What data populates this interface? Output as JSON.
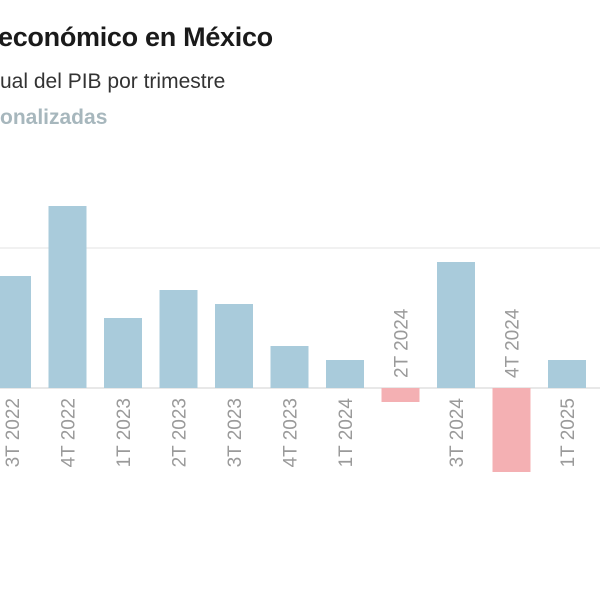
{
  "title": "económico en México",
  "subtitle": "ual del PIB por trimestre",
  "legend_label": "onalizadas",
  "colors": {
    "positive": "#a9cbdb",
    "negative": "#f4b0b3",
    "legend": "#a7b7bd",
    "grid": "#e3e3e3",
    "axis": "#d0d0d0",
    "tick": "#9a9a9a"
  },
  "chart_data": {
    "type": "bar",
    "title": "económico en México",
    "subtitle": "ual del PIB por trimestre",
    "categories": [
      "3T 2022",
      "4T 2022",
      "1T 2023",
      "2T 2023",
      "3T 2023",
      "4T 2023",
      "1T 2024",
      "2T 2024",
      "3T 2024",
      "4T 2024",
      "1T 2025"
    ],
    "values": [
      0.8,
      1.3,
      0.5,
      0.7,
      0.6,
      0.3,
      0.2,
      -0.1,
      0.9,
      -0.6,
      0.2
    ],
    "ylim": [
      -0.7,
      1.4
    ],
    "gridlines": [
      1.0
    ],
    "grid": true,
    "xlabel": "",
    "ylabel": ""
  }
}
